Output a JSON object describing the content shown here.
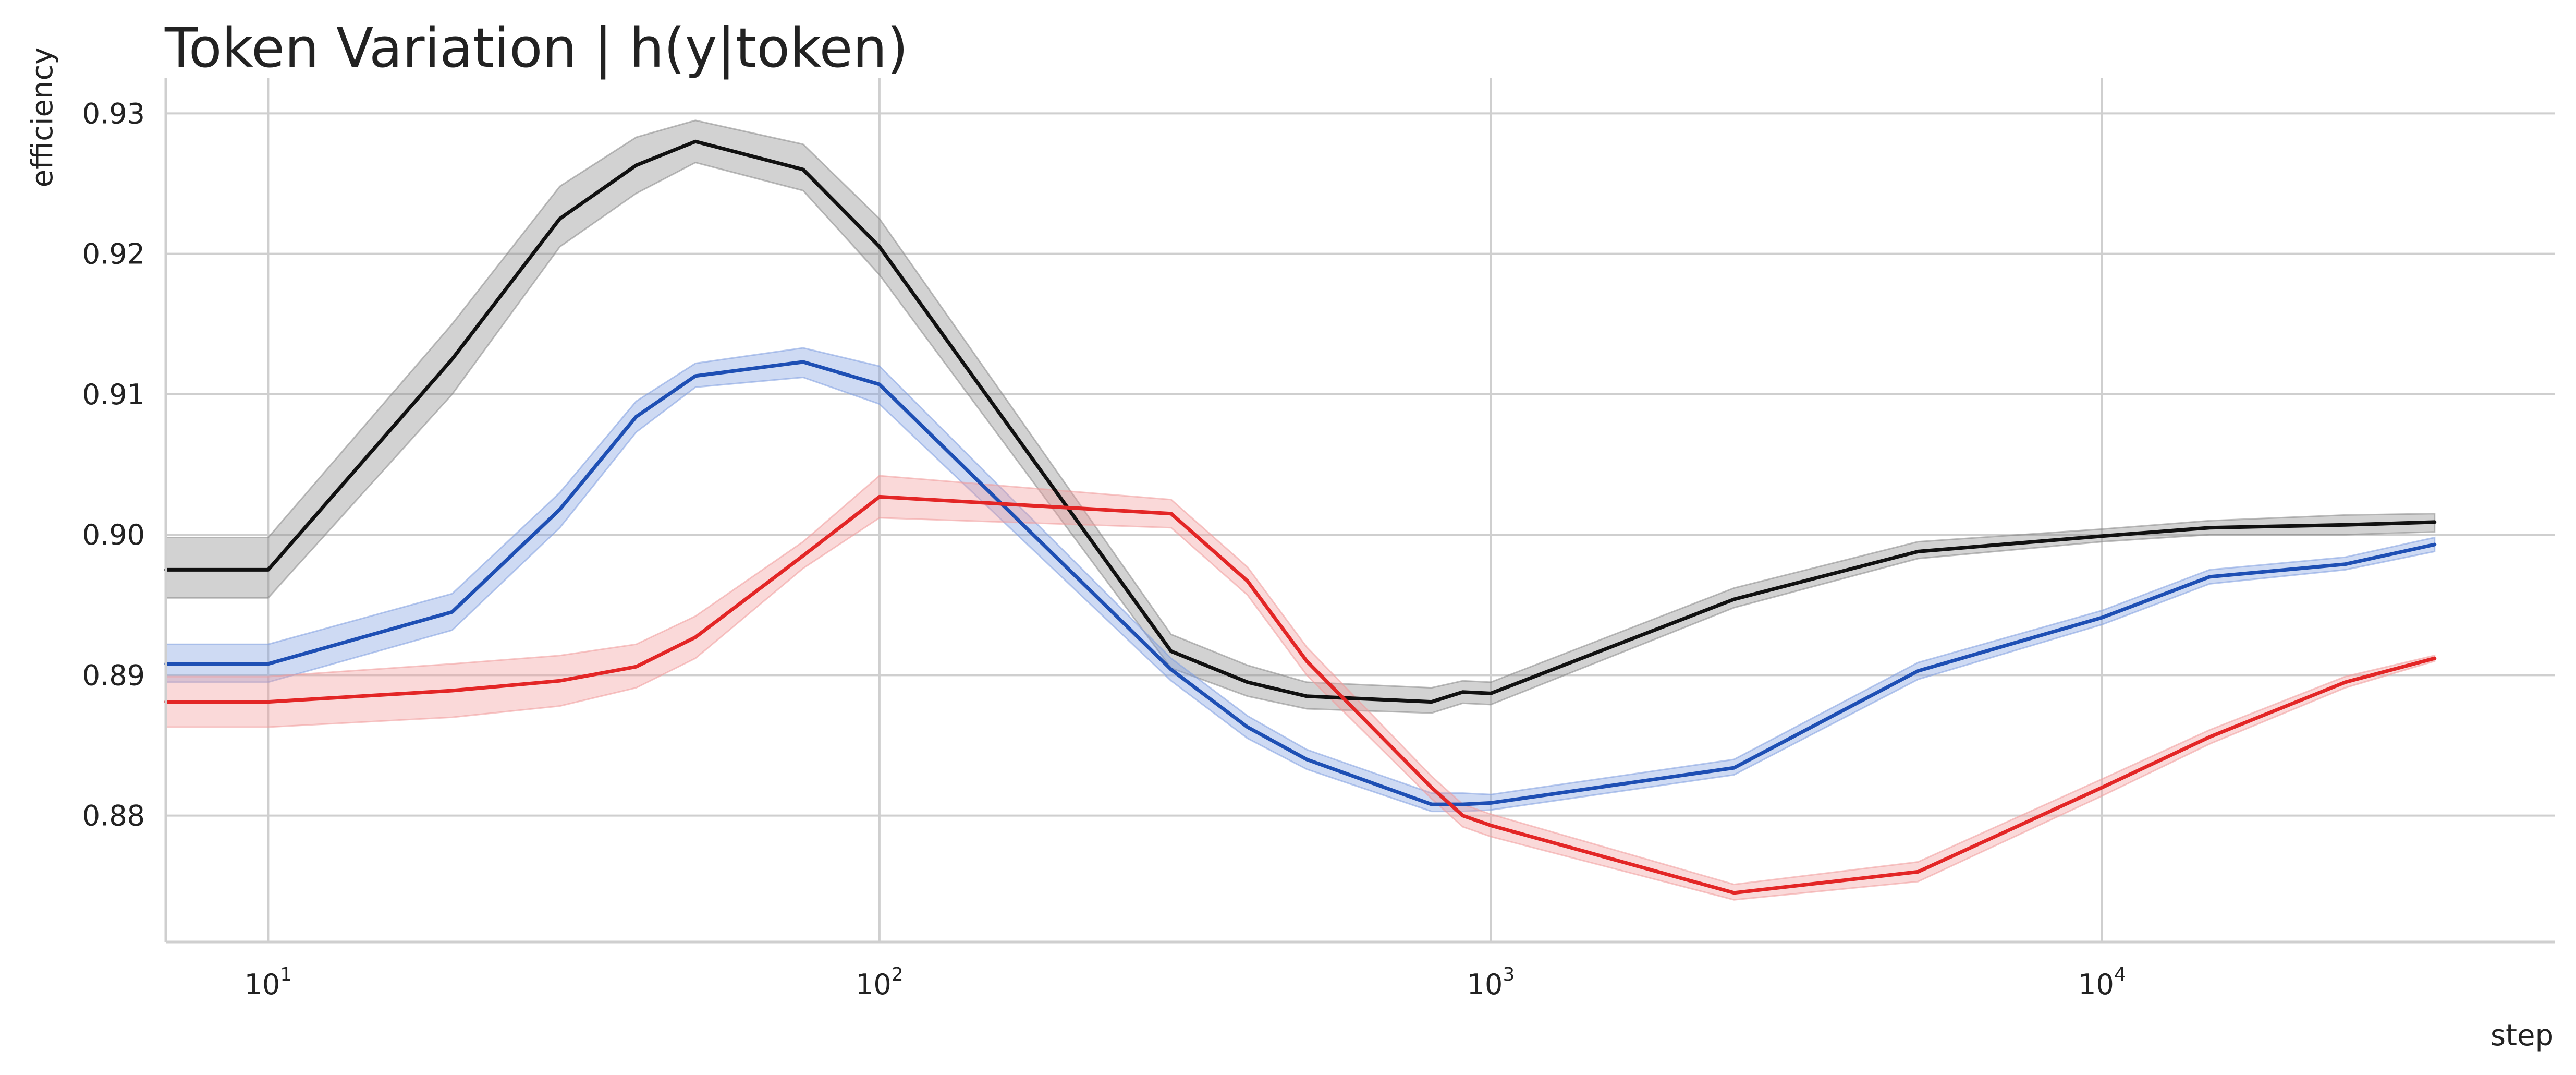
{
  "title": "Token Variation | h(y|token)",
  "chart_data": {
    "type": "line",
    "title": "Token Variation | h(y|token)",
    "xlabel": "step",
    "ylabel": "efficiency",
    "xscale": "log",
    "xlim": [
      6.8,
      55000
    ],
    "ylim": [
      0.871,
      0.9325
    ],
    "grid": true,
    "x_ticks": [
      {
        "value": 10,
        "base": "10",
        "exp": "1"
      },
      {
        "value": 100,
        "base": "10",
        "exp": "2"
      },
      {
        "value": 1000,
        "base": "10",
        "exp": "3"
      },
      {
        "value": 10000,
        "base": "10",
        "exp": "4"
      }
    ],
    "y_ticks": [
      {
        "value": 0.88,
        "label": "0.88"
      },
      {
        "value": 0.89,
        "label": "0.89"
      },
      {
        "value": 0.9,
        "label": "0.90"
      },
      {
        "value": 0.91,
        "label": "0.91"
      },
      {
        "value": 0.92,
        "label": "0.92"
      },
      {
        "value": 0.93,
        "label": "0.93"
      }
    ],
    "series": [
      {
        "color": "#111111",
        "band_color": "#888888",
        "x": [
          6.8,
          10,
          20,
          30,
          40,
          50,
          75,
          100,
          300,
          400,
          500,
          800,
          900,
          1000,
          2500,
          5000,
          10000,
          15000,
          25000,
          35000
        ],
        "y": [
          0.8975,
          0.8975,
          0.9125,
          0.9225,
          0.9263,
          0.928,
          0.926,
          0.9205,
          0.8917,
          0.8895,
          0.8885,
          0.8881,
          0.8888,
          0.8887,
          0.8954,
          0.8988,
          0.8999,
          0.9005,
          0.9007,
          0.9009
        ],
        "lower": [
          0.8955,
          0.8955,
          0.91,
          0.9205,
          0.9243,
          0.9265,
          0.9245,
          0.9185,
          0.8905,
          0.8885,
          0.8876,
          0.8873,
          0.888,
          0.8879,
          0.8948,
          0.8983,
          0.8995,
          0.9,
          0.9,
          0.9002
        ],
        "upper": [
          0.8998,
          0.8998,
          0.915,
          0.9248,
          0.9283,
          0.9295,
          0.9278,
          0.9225,
          0.8929,
          0.8907,
          0.8895,
          0.8891,
          0.8896,
          0.8895,
          0.8962,
          0.8995,
          0.9004,
          0.901,
          0.9014,
          0.9015
        ]
      },
      {
        "color": "#1e4fb4",
        "band_color": "#7f9fe0",
        "x": [
          6.8,
          10,
          20,
          30,
          40,
          50,
          75,
          100,
          300,
          400,
          500,
          800,
          900,
          1000,
          2500,
          5000,
          10000,
          15000,
          25000,
          35000
        ],
        "y": [
          0.8908,
          0.8908,
          0.8945,
          0.9018,
          0.9084,
          0.9113,
          0.9123,
          0.9107,
          0.8904,
          0.8863,
          0.884,
          0.8808,
          0.8808,
          0.8809,
          0.8834,
          0.8903,
          0.8941,
          0.897,
          0.8979,
          0.8993
        ],
        "lower": [
          0.8895,
          0.8895,
          0.8932,
          0.9005,
          0.9073,
          0.9105,
          0.9112,
          0.9093,
          0.8896,
          0.8855,
          0.8833,
          0.8803,
          0.8803,
          0.8804,
          0.8829,
          0.8897,
          0.8936,
          0.8965,
          0.8975,
          0.8988
        ],
        "upper": [
          0.8922,
          0.8922,
          0.8958,
          0.903,
          0.9095,
          0.9122,
          0.9133,
          0.912,
          0.8912,
          0.8871,
          0.8847,
          0.8816,
          0.8816,
          0.8815,
          0.884,
          0.8909,
          0.8946,
          0.8975,
          0.8984,
          0.8998
        ]
      },
      {
        "color": "#e32626",
        "band_color": "#f19a9a",
        "x": [
          6.8,
          10,
          20,
          30,
          40,
          50,
          75,
          100,
          300,
          400,
          500,
          800,
          900,
          1000,
          2500,
          5000,
          10000,
          15000,
          25000,
          35000
        ],
        "y": [
          0.8881,
          0.8881,
          0.8889,
          0.8896,
          0.8906,
          0.8927,
          0.8985,
          0.9027,
          0.9015,
          0.8967,
          0.891,
          0.882,
          0.88,
          0.8793,
          0.8745,
          0.876,
          0.882,
          0.8856,
          0.8895,
          0.8912
        ],
        "lower": [
          0.8863,
          0.8863,
          0.887,
          0.8878,
          0.8891,
          0.8912,
          0.8976,
          0.9012,
          0.9005,
          0.8957,
          0.89,
          0.8812,
          0.8792,
          0.8785,
          0.874,
          0.8753,
          0.8814,
          0.8851,
          0.8891,
          0.891
        ],
        "upper": [
          0.8899,
          0.8899,
          0.8908,
          0.8914,
          0.8922,
          0.8942,
          0.8995,
          0.9042,
          0.9025,
          0.8977,
          0.892,
          0.8828,
          0.8808,
          0.8801,
          0.8751,
          0.8767,
          0.8826,
          0.8861,
          0.8899,
          0.8914
        ]
      }
    ]
  }
}
